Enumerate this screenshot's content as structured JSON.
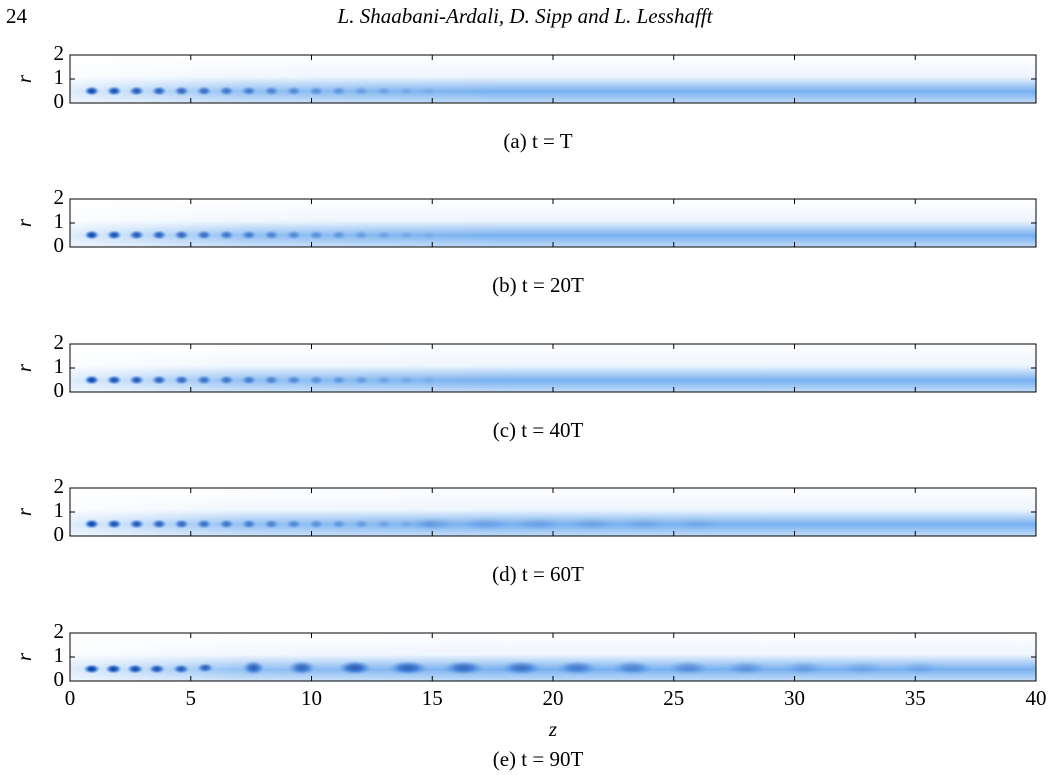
{
  "header": {
    "page_number": "24",
    "authors": "L. Shaabani-Ardali, D. Sipp and L. Lesshafft"
  },
  "figure": {
    "xlabel": "z",
    "ylabel": "r",
    "xlim": [
      0,
      40
    ],
    "xticks": [
      0,
      5,
      10,
      15,
      20,
      25,
      30,
      35,
      40
    ],
    "ylim": [
      0,
      2
    ],
    "yticks": [
      0,
      1,
      2
    ],
    "panels": [
      {
        "caption": "(a) t = T"
      },
      {
        "caption": "(b) t = 20T"
      },
      {
        "caption": "(c) t = 40T"
      },
      {
        "caption": "(d) t = 60T"
      },
      {
        "caption": "(e) t = 90T"
      }
    ]
  }
}
